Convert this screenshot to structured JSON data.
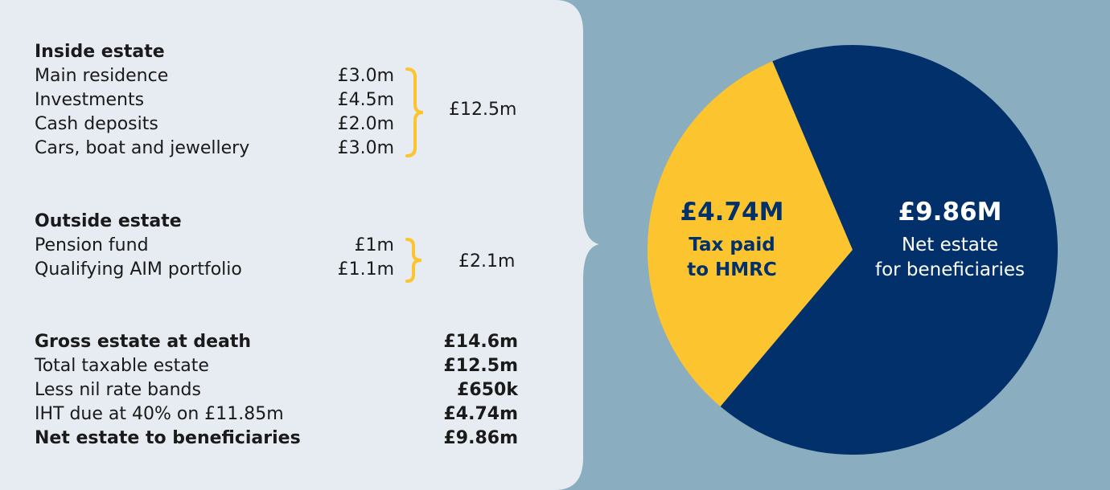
{
  "inside_estate": {
    "heading": "Inside estate",
    "items": [
      {
        "label": "Main residence",
        "value": "£3.0m"
      },
      {
        "label": "Investments",
        "value": "£4.5m"
      },
      {
        "label": "Cash deposits",
        "value": "£2.0m"
      },
      {
        "label": "Cars, boat and jewellery",
        "value": "£3.0m"
      }
    ],
    "total": "£12.5m"
  },
  "outside_estate": {
    "heading": "Outside estate",
    "items": [
      {
        "label": "Pension fund",
        "value": "£1m"
      },
      {
        "label": "Qualifying AIM portfolio",
        "value": "£1.1m"
      }
    ],
    "total": "£2.1m"
  },
  "summary": [
    {
      "label": "Gross estate at death",
      "value": "£14.6m",
      "bold": true
    },
    {
      "label": "Total taxable estate",
      "value": "£12.5m",
      "bold": false
    },
    {
      "label": "Less nil rate bands",
      "value": "£650k",
      "bold": false
    },
    {
      "label": "IHT due at 40% on £11.85m",
      "value": "£4.74m",
      "bold": false
    },
    {
      "label": "Net estate to beneficiaries",
      "value": "£9.86m",
      "bold": true
    }
  ],
  "colors": {
    "panel": "#e6ecf1",
    "background": "#8aadc0",
    "brace": "#fcc42f",
    "tax": "#fcc42f",
    "net": "#01306a"
  },
  "chart_data": {
    "type": "pie",
    "slices": [
      {
        "name": "Tax paid to HMRC",
        "value": 4.74,
        "value_label": "£4.74M",
        "lines": [
          "Tax paid",
          "to HMRC"
        ],
        "color": "#fcc42f",
        "text_color": "#01306a"
      },
      {
        "name": "Net estate for beneficiaries",
        "value": 9.86,
        "value_label": "£9.86M",
        "lines": [
          "Net estate",
          "for beneficiaries"
        ],
        "color": "#01306a",
        "text_color": "#ffffff"
      }
    ]
  }
}
